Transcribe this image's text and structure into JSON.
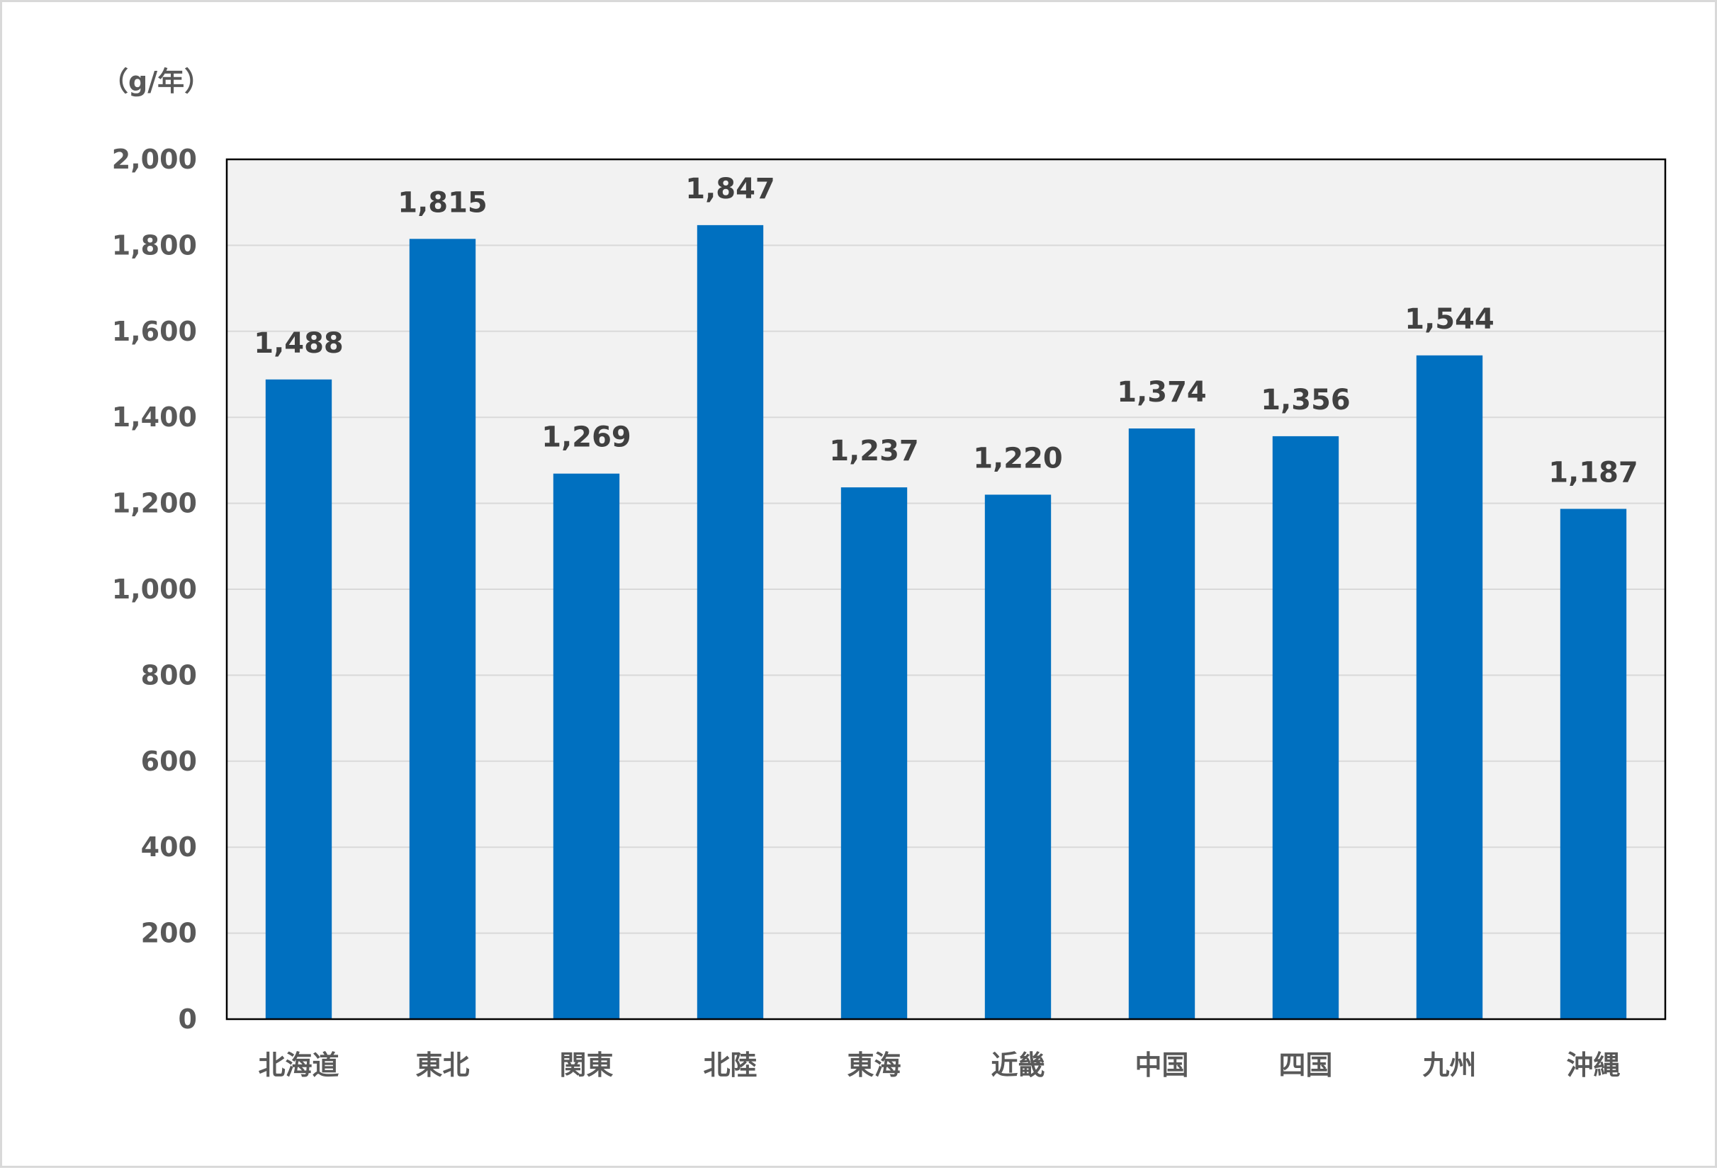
{
  "chart_data": {
    "type": "bar",
    "unit_label": "（g/年）",
    "categories": [
      "北海道",
      "東北",
      "関東",
      "北陸",
      "東海",
      "近畿",
      "中国",
      "四国",
      "九州",
      "沖縄"
    ],
    "values": [
      1488,
      1815,
      1269,
      1847,
      1237,
      1220,
      1374,
      1356,
      1544,
      1187
    ],
    "value_labels": [
      "1,488",
      "1,815",
      "1,269",
      "1,847",
      "1,237",
      "1,220",
      "1,374",
      "1,356",
      "1,544",
      "1,187"
    ],
    "yticks": [
      0,
      200,
      400,
      600,
      800,
      1000,
      1200,
      1400,
      1600,
      1800,
      2000
    ],
    "ytick_labels": [
      "0",
      "200",
      "400",
      "600",
      "800",
      "1,000",
      "1,200",
      "1,400",
      "1,600",
      "1,800",
      "2,000"
    ],
    "ylim": [
      0,
      2000
    ],
    "grid": true,
    "legend": "none",
    "colors": {
      "bar": "#0070C0",
      "plot_bg": "#F2F2F2",
      "grid": "#D9D9D9",
      "axis": "#000000"
    }
  }
}
